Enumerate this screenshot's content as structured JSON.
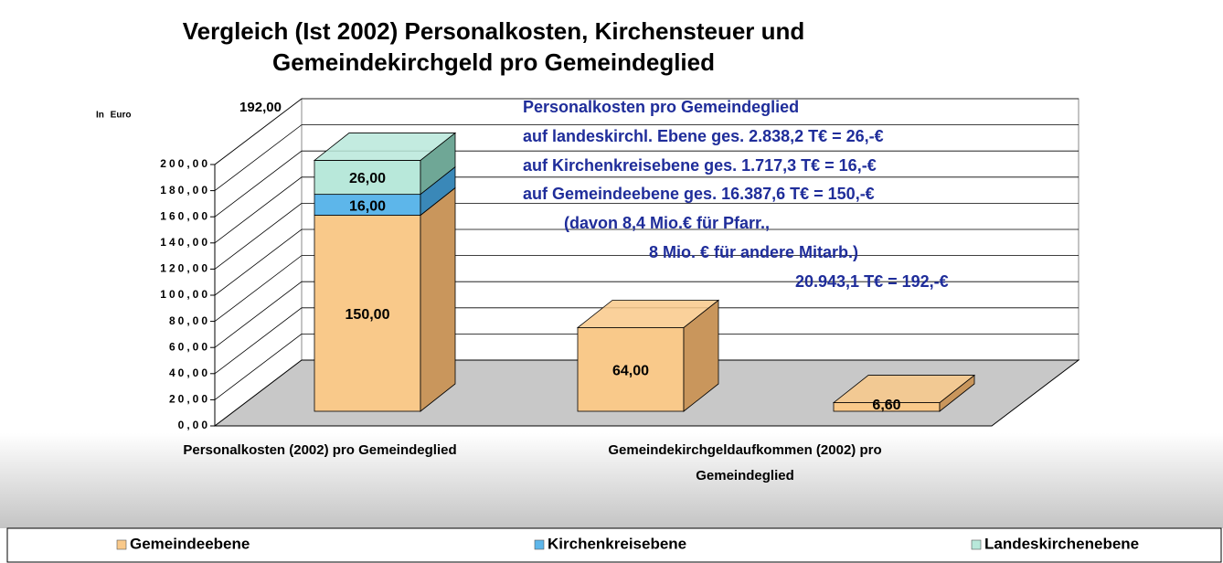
{
  "chart_data": {
    "type": "bar",
    "stacked": true,
    "title": [
      "Vergleich (Ist 2002) Personalkosten, Kirchensteuer und",
      "Gemeindekirchgeld pro Gemeindeglied"
    ],
    "y_label": "In Euro",
    "total_label": "192,00",
    "annotations": [
      "Personalkosten pro Gemeindeglied",
      "auf landeskirchl. Ebene ges. 2.838,2 T€ = 26,-€",
      "auf Kirchenkreisebene   ges. 1.717,3 T€ = 16,-€",
      "auf Gemeindeebene     ges. 16.387,6 T€ = 150,-€",
      "(davon 8,4 Mio.€ für Pfarr.,",
      "8 Mio. € für andere Mitarb.)",
      "20.943,1 T€ = 192,-€"
    ],
    "categories": [
      "Personalkosten (2002) pro Gemeindeglied",
      null,
      "Gemeindekirchgeldaufkommen (2002) pro Gemeindeglied"
    ],
    "series": [
      {
        "name": "Gemeindeebene",
        "color": "#f9c98a",
        "side": "#c9965c",
        "values": [
          150,
          64,
          6.6
        ],
        "value_labels": [
          "150,00",
          "64,00",
          "6,60"
        ]
      },
      {
        "name": "Kirchenkreisebene",
        "color": "#5db6ea",
        "side": "#3a88b8",
        "values": [
          16,
          null,
          null
        ],
        "value_labels": [
          "16,00",
          null,
          null
        ]
      },
      {
        "name": "Landeskirchenebene",
        "color": "#b8e8da",
        "side": "#6fa796",
        "values": [
          26,
          null,
          null
        ],
        "value_labels": [
          "26,00",
          null,
          null
        ]
      }
    ],
    "ylim": [
      0,
      200
    ],
    "yticks": [
      {
        "value": 0,
        "label": "0,00"
      },
      {
        "value": 20,
        "label": "20,00"
      },
      {
        "value": 40,
        "label": "40,00"
      },
      {
        "value": 60,
        "label": "60,00"
      },
      {
        "value": 80,
        "label": "80,00"
      },
      {
        "value": 100,
        "label": "100,00"
      },
      {
        "value": 120,
        "label": "120,00"
      },
      {
        "value": 140,
        "label": "140,00"
      },
      {
        "value": 160,
        "label": "160,00"
      },
      {
        "value": 180,
        "label": "180,00"
      },
      {
        "value": 200,
        "label": "200,00"
      }
    ],
    "grid": true,
    "legend": "bottom"
  }
}
